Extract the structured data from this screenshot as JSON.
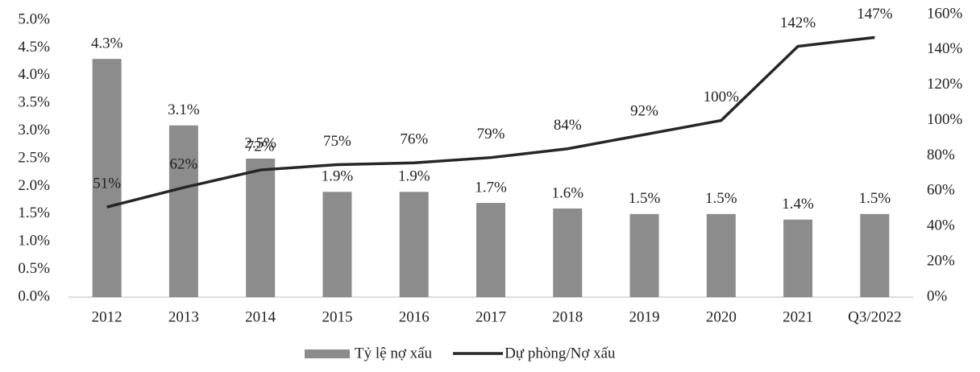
{
  "chart_data": {
    "type": "bar_line",
    "categories": [
      "2012",
      "2013",
      "2014",
      "2015",
      "2016",
      "2017",
      "2018",
      "2019",
      "2020",
      "2021",
      "Q3/2022"
    ],
    "series": [
      {
        "name": "Tỷ lệ nợ xấu",
        "type": "bar",
        "color": "#8c8c8c",
        "axis": "y",
        "values": [
          4.3,
          3.1,
          2.5,
          1.9,
          1.9,
          1.7,
          1.6,
          1.5,
          1.5,
          1.4,
          1.5
        ],
        "value_labels": [
          "4.3%",
          "3.1%",
          "2.5%",
          "1.9%",
          "1.9%",
          "1.7%",
          "1.6%",
          "1.5%",
          "1.5%",
          "1.4%",
          "1.5%"
        ]
      },
      {
        "name": "Dự phòng/Nợ xấu",
        "type": "line",
        "color": "#262626",
        "axis": "y2",
        "values": [
          51,
          62,
          72,
          75,
          76,
          79,
          84,
          92,
          100,
          142,
          147
        ],
        "value_labels": [
          "51%",
          "62%",
          "72%",
          "75%",
          "76%",
          "79%",
          "84%",
          "92%",
          "100%",
          "142%",
          "147%"
        ]
      }
    ],
    "ylim": [
      0,
      5
    ],
    "yticks": [
      {
        "value": 0,
        "label": "0.0%"
      },
      {
        "value": 0.5,
        "label": "0.5%"
      },
      {
        "value": 1,
        "label": "1.0%"
      },
      {
        "value": 1.5,
        "label": "1.5%"
      },
      {
        "value": 2,
        "label": "2.0%"
      },
      {
        "value": 2.5,
        "label": "2.5%"
      },
      {
        "value": 3,
        "label": "3.0%"
      },
      {
        "value": 3.5,
        "label": "3.5%"
      },
      {
        "value": 4,
        "label": "4.0%"
      },
      {
        "value": 4.5,
        "label": "4.5%"
      },
      {
        "value": 5,
        "label": "5.0%"
      }
    ],
    "y2lim": [
      0,
      160
    ],
    "y2ticks": [
      {
        "value": 0,
        "label": "0%"
      },
      {
        "value": 20,
        "label": "20%"
      },
      {
        "value": 40,
        "label": "40%"
      },
      {
        "value": 60,
        "label": "60%"
      },
      {
        "value": 80,
        "label": "80%"
      },
      {
        "value": 100,
        "label": "100%"
      },
      {
        "value": 120,
        "label": "120%"
      },
      {
        "value": 140,
        "label": "140%"
      },
      {
        "value": 160,
        "label": "160%"
      }
    ],
    "grid": false,
    "legend": "bottom"
  }
}
